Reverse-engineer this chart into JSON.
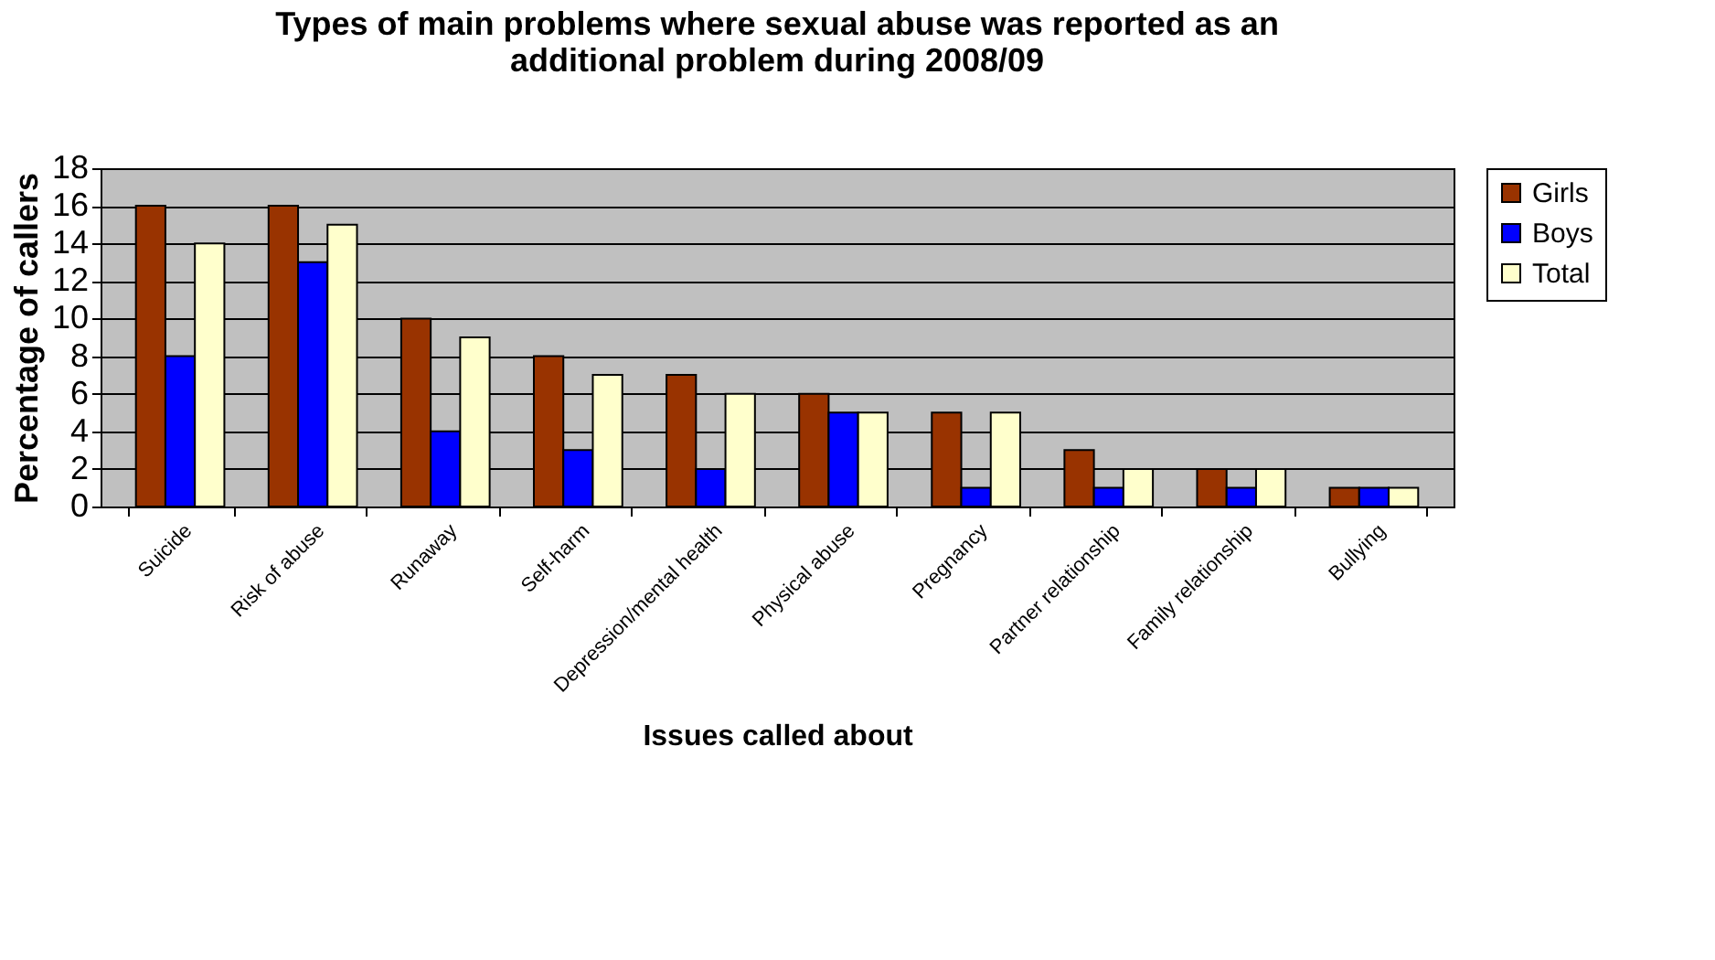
{
  "chart_data": {
    "type": "bar",
    "title": [
      "Types of main problems where sexual abuse was reported as an",
      "additional problem during 2008/09"
    ],
    "xlabel": "Issues called about",
    "ylabel": "Percentage of callers",
    "categories": [
      "Suicide",
      "Risk of abuse",
      "Runaway",
      "Self-harm",
      "Depression/mental health",
      "Physical abuse",
      "Pregnancy",
      "Partner relationship",
      "Family relationship",
      "Bullying"
    ],
    "series": [
      {
        "name": "Girls",
        "color": "#993300",
        "values": [
          16,
          16,
          10,
          8,
          7,
          6,
          5,
          3,
          2,
          1
        ]
      },
      {
        "name": "Boys",
        "color": "#0000ff",
        "values": [
          8,
          13,
          4,
          3,
          2,
          5,
          1,
          1,
          1,
          1
        ]
      },
      {
        "name": "Total",
        "color": "#ffffcc",
        "values": [
          14,
          15,
          9,
          7,
          6,
          5,
          5,
          2,
          2,
          1
        ]
      }
    ],
    "ylim": [
      0,
      18
    ],
    "yticks": [
      0,
      2,
      4,
      6,
      8,
      10,
      12,
      14,
      16,
      18
    ],
    "grid": "y",
    "legend": "right"
  }
}
